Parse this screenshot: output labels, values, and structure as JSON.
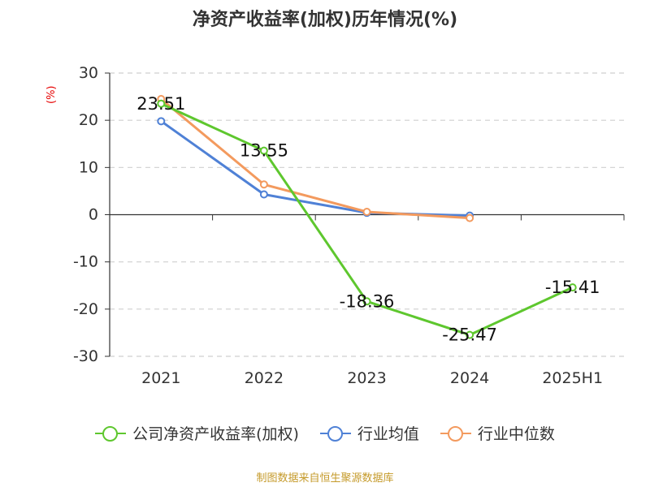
{
  "chart_data": {
    "type": "line",
    "title": "净资产收益率(加权)历年情况(%)",
    "ylabel": "(%)",
    "categories": [
      "2021",
      "2022",
      "2023",
      "2024",
      "2025H1"
    ],
    "ylim": [
      -30,
      30
    ],
    "yticks": [
      30,
      20,
      10,
      0,
      -10,
      -20,
      -30
    ],
    "grid": true,
    "legend_position": "bottom",
    "series": [
      {
        "name": "公司净资产收益率(加权)",
        "color": "#5ec72e",
        "values": [
          23.51,
          13.55,
          -18.36,
          -25.47,
          -15.41
        ],
        "labels": [
          "23.51",
          "13.55",
          "-18.36",
          "-25.47",
          "-15.41"
        ]
      },
      {
        "name": "行业均值",
        "color": "#4f81d6",
        "values": [
          19.8,
          4.3,
          0.4,
          -0.2,
          null
        ]
      },
      {
        "name": "行业中位数",
        "color": "#f39a5e",
        "values": [
          24.5,
          6.4,
          0.6,
          -0.7,
          null
        ]
      }
    ]
  },
  "source": "制图数据来自恒生聚源数据库"
}
